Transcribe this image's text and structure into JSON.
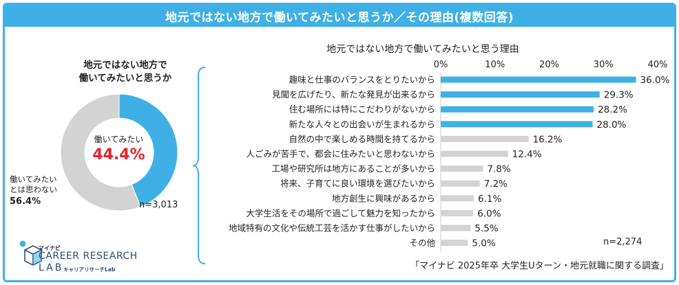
{
  "header": {
    "title": "地元ではない地方で働いてみたいと思うか／その理由(複数回答)"
  },
  "chart_data": [
    {
      "type": "pie",
      "title": "地元ではない地方で\n働いてみたいと思うか",
      "title_lines": [
        "地元ではない地方で",
        "働いてみたいと思うか"
      ],
      "slices": [
        {
          "label": "働いてみたい",
          "value": 44.4,
          "value_label": "44.4%",
          "color": "#3fb0e6"
        },
        {
          "label_lines": [
            "働いてみたい",
            "とは思わない"
          ],
          "label": "働いてみたいとは思わない",
          "value": 56.4,
          "value_label": "56.4%",
          "color": "#d3d3d3"
        }
      ],
      "n_label": "n=3,013"
    },
    {
      "type": "bar",
      "orientation": "horizontal",
      "title": "地元ではない地方で働いてみたいと思う理由",
      "xlim": [
        0,
        40
      ],
      "ticks": [
        "0%",
        "10%",
        "20%",
        "30%",
        "40%"
      ],
      "tick_values": [
        0,
        10,
        20,
        30,
        40
      ],
      "highlight_color": "#3fb0e6",
      "base_color": "#d3d3d3",
      "categories": [
        "趣味と仕事のバランスをとりたいから",
        "見聞を広げたり、新たな発見が出来るから",
        "住む場所には特にこだわりがないから",
        "新たな人々との出会いが生まれるから",
        "自然の中で楽しめる時間を持てるから",
        "人ごみが苦手で、都会に住みたいと思わないから",
        "工場や研究所は地方にあることが多いから",
        "将来、子育てに良い環境を選びたいから",
        "地方創生に興味があるから",
        "大学生活をその場所で過ごして魅力を知ったから",
        "地域特有の文化や伝統工芸を活かす仕事がしたいから",
        "その他"
      ],
      "values": [
        36.0,
        29.3,
        28.2,
        28.0,
        16.2,
        12.4,
        7.8,
        7.2,
        6.1,
        6.0,
        5.5,
        5.0
      ],
      "value_labels": [
        "36.0%",
        "29.3%",
        "28.2%",
        "28.0%",
        "16.2%",
        "12.4%",
        "7.8%",
        "7.2%",
        "6.1%",
        "6.0%",
        "5.5%",
        "5.0%"
      ],
      "highlighted": [
        true,
        true,
        true,
        true,
        false,
        false,
        false,
        false,
        false,
        false,
        false,
        false
      ],
      "n_label": "n=2,274"
    }
  ],
  "source": "「マイナビ 2025年卒 大学生Uターン・地元就職に関する調査」",
  "logo": {
    "brand": "マイナビ",
    "name_line1": "CAREER RESEARCH",
    "name_line2": "LAB",
    "name_kana": "キャリアリサーチLab"
  }
}
